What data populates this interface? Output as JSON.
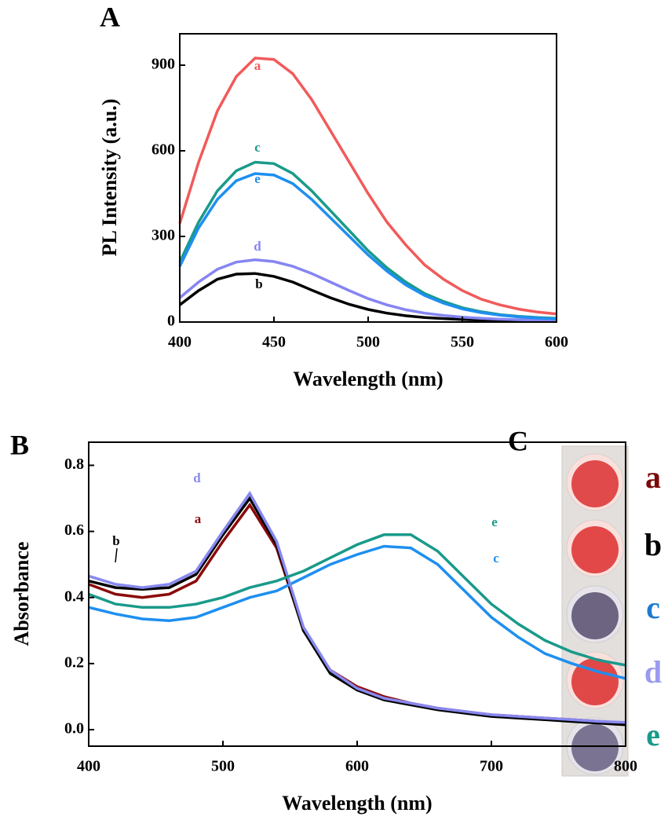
{
  "chart_data": [
    {
      "type": "line",
      "panel": "A",
      "xlabel": "Wavelength (nm)",
      "ylabel": "PL Intensity (a.u.)",
      "x": [
        400,
        410,
        420,
        430,
        440,
        450,
        460,
        470,
        480,
        490,
        500,
        510,
        520,
        530,
        540,
        550,
        560,
        570,
        580,
        590,
        600
      ],
      "xlim": [
        400,
        600
      ],
      "xticks": [
        400,
        450,
        500,
        550,
        600
      ],
      "ylim": [
        0,
        1010
      ],
      "yticks": [
        0,
        300,
        600,
        900
      ],
      "series": [
        {
          "name": "a",
          "color": "#f25a5a",
          "values": [
            345,
            560,
            740,
            860,
            925,
            920,
            870,
            780,
            670,
            560,
            450,
            350,
            270,
            200,
            150,
            110,
            80,
            60,
            45,
            35,
            28
          ]
        },
        {
          "name": "b",
          "color": "#000000",
          "values": [
            60,
            110,
            150,
            168,
            170,
            160,
            140,
            112,
            85,
            62,
            44,
            31,
            22,
            16,
            12,
            9,
            7,
            6,
            5,
            4,
            4
          ]
        },
        {
          "name": "c",
          "color": "#1a9a8a",
          "values": [
            210,
            350,
            460,
            530,
            560,
            555,
            520,
            460,
            390,
            320,
            250,
            190,
            140,
            100,
            72,
            50,
            36,
            26,
            20,
            16,
            13
          ]
        },
        {
          "name": "d",
          "color": "#8585f2",
          "values": [
            85,
            140,
            185,
            210,
            218,
            212,
            195,
            170,
            140,
            110,
            82,
            60,
            43,
            31,
            23,
            17,
            13,
            10,
            8,
            7,
            6
          ]
        },
        {
          "name": "e",
          "color": "#1e8ff0",
          "values": [
            195,
            330,
            430,
            495,
            520,
            515,
            485,
            430,
            365,
            300,
            235,
            178,
            130,
            93,
            66,
            46,
            33,
            24,
            18,
            14,
            11
          ]
        }
      ]
    },
    {
      "type": "line",
      "panel": "B",
      "xlabel": "Wavelength (nm)",
      "ylabel": "Absorbance",
      "x": [
        400,
        420,
        440,
        460,
        480,
        500,
        520,
        540,
        560,
        580,
        600,
        620,
        640,
        660,
        680,
        700,
        720,
        740,
        760,
        780,
        800
      ],
      "xlim": [
        400,
        800
      ],
      "xticks": [
        400,
        500,
        600,
        700,
        800
      ],
      "ylim": [
        -0.05,
        0.87
      ],
      "yticks": [
        {
          "value": 0,
          "label": "0.0"
        },
        0.2,
        0.4,
        0.6,
        0.8
      ],
      "series": [
        {
          "name": "a",
          "color": "#8b0a0a",
          "values": [
            0.44,
            0.41,
            0.4,
            0.41,
            0.45,
            0.57,
            0.68,
            0.55,
            0.3,
            0.18,
            0.13,
            0.1,
            0.08,
            0.065,
            0.055,
            0.045,
            0.04,
            0.035,
            0.03,
            0.025,
            0.02
          ]
        },
        {
          "name": "b",
          "color": "#000000",
          "values": [
            0.45,
            0.43,
            0.425,
            0.43,
            0.47,
            0.59,
            0.7,
            0.56,
            0.3,
            0.17,
            0.12,
            0.09,
            0.075,
            0.06,
            0.05,
            0.04,
            0.035,
            0.03,
            0.025,
            0.02,
            0.015
          ]
        },
        {
          "name": "c",
          "color": "#1e8ff0",
          "values": [
            0.37,
            0.35,
            0.335,
            0.33,
            0.34,
            0.37,
            0.4,
            0.42,
            0.46,
            0.5,
            0.53,
            0.555,
            0.55,
            0.5,
            0.42,
            0.34,
            0.28,
            0.23,
            0.2,
            0.175,
            0.155
          ]
        },
        {
          "name": "d",
          "color": "#8888f0",
          "values": [
            0.465,
            0.44,
            0.43,
            0.44,
            0.48,
            0.6,
            0.715,
            0.57,
            0.31,
            0.18,
            0.125,
            0.095,
            0.08,
            0.065,
            0.055,
            0.045,
            0.04,
            0.035,
            0.03,
            0.025,
            0.022
          ]
        },
        {
          "name": "e",
          "color": "#1a9a8a",
          "values": [
            0.41,
            0.38,
            0.37,
            0.37,
            0.38,
            0.4,
            0.43,
            0.45,
            0.48,
            0.52,
            0.56,
            0.59,
            0.59,
            0.54,
            0.46,
            0.38,
            0.32,
            0.27,
            0.235,
            0.21,
            0.195
          ]
        }
      ]
    }
  ],
  "photo": {
    "panel": "C",
    "labels": [
      "a",
      "b",
      "c",
      "d",
      "e"
    ]
  }
}
